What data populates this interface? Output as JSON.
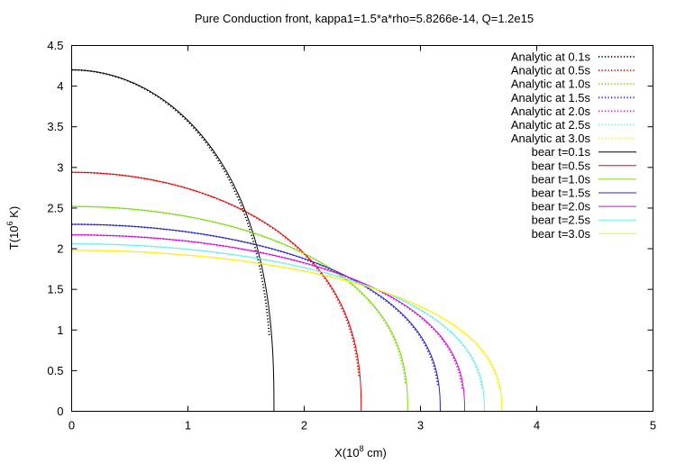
{
  "chart_data": {
    "type": "line",
    "title": "Pure Conduction front, kappa1=1.5*a*rho=5.8266e-14, Q=1.2e15",
    "xlabel": "X(10",
    "xlabel_sup": "8",
    "xlabel_unit": " cm)",
    "ylabel": "T(10",
    "ylabel_sup": "6",
    "ylabel_unit": " K)",
    "xlim": [
      0,
      5
    ],
    "ylim": [
      0,
      4.5
    ],
    "xticks": [
      "0",
      "1",
      "2",
      "3",
      "4",
      "5"
    ],
    "yticks": [
      "0",
      "0.5",
      "1",
      "1.5",
      "2",
      "2.5",
      "3",
      "3.5",
      "4",
      "4.5"
    ],
    "grid": false,
    "legend_position": "top-right",
    "series": [
      {
        "name": "Analytic at 0.1s",
        "style": "dotted",
        "color": "#000000",
        "t": 0.1,
        "T0": 4.2,
        "xf": 1.72,
        "x_end": 1.7
      },
      {
        "name": "Analytic at 0.5s",
        "style": "dotted",
        "color": "#ee0000",
        "t": 0.5,
        "T0": 2.94,
        "xf": 2.48,
        "x_end": 2.47
      },
      {
        "name": "Analytic at 1.0s",
        "style": "dotted",
        "color": "#77dd00",
        "t": 1.0,
        "T0": 2.52,
        "xf": 2.88,
        "x_end": 2.87
      },
      {
        "name": "Analytic at 1.5s",
        "style": "dotted",
        "color": "#2222cc",
        "t": 1.5,
        "T0": 2.3,
        "xf": 3.16,
        "x_end": 3.15
      },
      {
        "name": "Analytic at 2.0s",
        "style": "dotted",
        "color": "#dd00dd",
        "t": 2.0,
        "T0": 2.17,
        "xf": 3.37,
        "x_end": 3.36
      },
      {
        "name": "Analytic at 2.5s",
        "style": "dotted",
        "color": "#66eeee",
        "t": 2.5,
        "T0": 2.06,
        "xf": 3.54,
        "x_end": 3.53
      },
      {
        "name": "Analytic at 3.0s",
        "style": "dotted",
        "color": "#ffee00",
        "t": 3.0,
        "T0": 1.98,
        "xf": 3.69,
        "x_end": 3.68
      },
      {
        "name": "bear t=0.1s",
        "style": "solid",
        "color": "#000000",
        "t": 0.1,
        "T0": 4.2,
        "xf": 1.74
      },
      {
        "name": "bear t=0.5s",
        "style": "solid",
        "color": "#ee0000",
        "t": 0.5,
        "T0": 2.94,
        "xf": 2.49
      },
      {
        "name": "bear t=1.0s",
        "style": "solid",
        "color": "#77dd00",
        "t": 1.0,
        "T0": 2.52,
        "xf": 2.89
      },
      {
        "name": "bear t=1.5s",
        "style": "solid",
        "color": "#2222cc",
        "t": 1.5,
        "T0": 2.3,
        "xf": 3.17
      },
      {
        "name": "bear t=2.0s",
        "style": "solid",
        "color": "#dd00dd",
        "t": 2.0,
        "T0": 2.17,
        "xf": 3.38
      },
      {
        "name": "bear t=2.5s",
        "style": "solid",
        "color": "#66eeee",
        "t": 2.5,
        "T0": 2.06,
        "xf": 3.55
      },
      {
        "name": "bear t=3.0s",
        "style": "solid",
        "color": "#ffee00",
        "t": 3.0,
        "T0": 1.98,
        "xf": 3.7
      }
    ]
  }
}
